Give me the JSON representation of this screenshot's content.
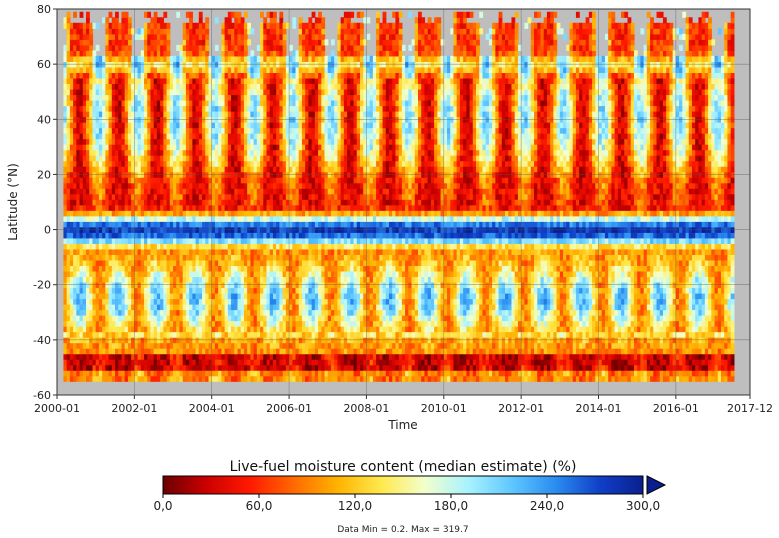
{
  "chart_data": {
    "type": "heatmap",
    "xlabel": "Time",
    "ylabel": "Latitude (°N)",
    "x_ticks": [
      "2000-01",
      "2002-01",
      "2004-01",
      "2006-01",
      "2008-01",
      "2010-01",
      "2012-01",
      "2014-01",
      "2016-01",
      "2017-12"
    ],
    "y_ticks": [
      "80",
      "60",
      "40",
      "20",
      "0",
      "-20",
      "-40",
      "-60"
    ],
    "x_range": [
      "2000-01",
      "2017-12"
    ],
    "y_range": [
      -60,
      80
    ],
    "x_data_range": [
      "2000-03",
      "2017-06"
    ],
    "y_data_range": [
      -55,
      79
    ],
    "missing_color": "#bebebe",
    "grid": true,
    "pattern": {
      "period_months": 12,
      "tropics_lat": 0,
      "tropics_value": 280,
      "peak_hemisphere_value": 30,
      "southern_band_value": 90
    },
    "colorbar": {
      "title": "Live-fuel moisture content (median estimate) (%)",
      "ticks": [
        "0,0",
        "60,0",
        "120,0",
        "180,0",
        "240,0",
        "300,0"
      ],
      "tick_values": [
        0,
        60,
        120,
        180,
        240,
        300
      ],
      "min": 0,
      "max": 300,
      "extend": "max",
      "colors": [
        "#6b0000",
        "#cc0000",
        "#ff1a00",
        "#ff6a00",
        "#ffb300",
        "#ffe94d",
        "#f2ffcc",
        "#a8f2ff",
        "#5ec7ff",
        "#2a8cf0",
        "#1040c8",
        "#0a1f8f"
      ],
      "range_note": "Data Min = 0.2. Max = 319.7"
    }
  }
}
